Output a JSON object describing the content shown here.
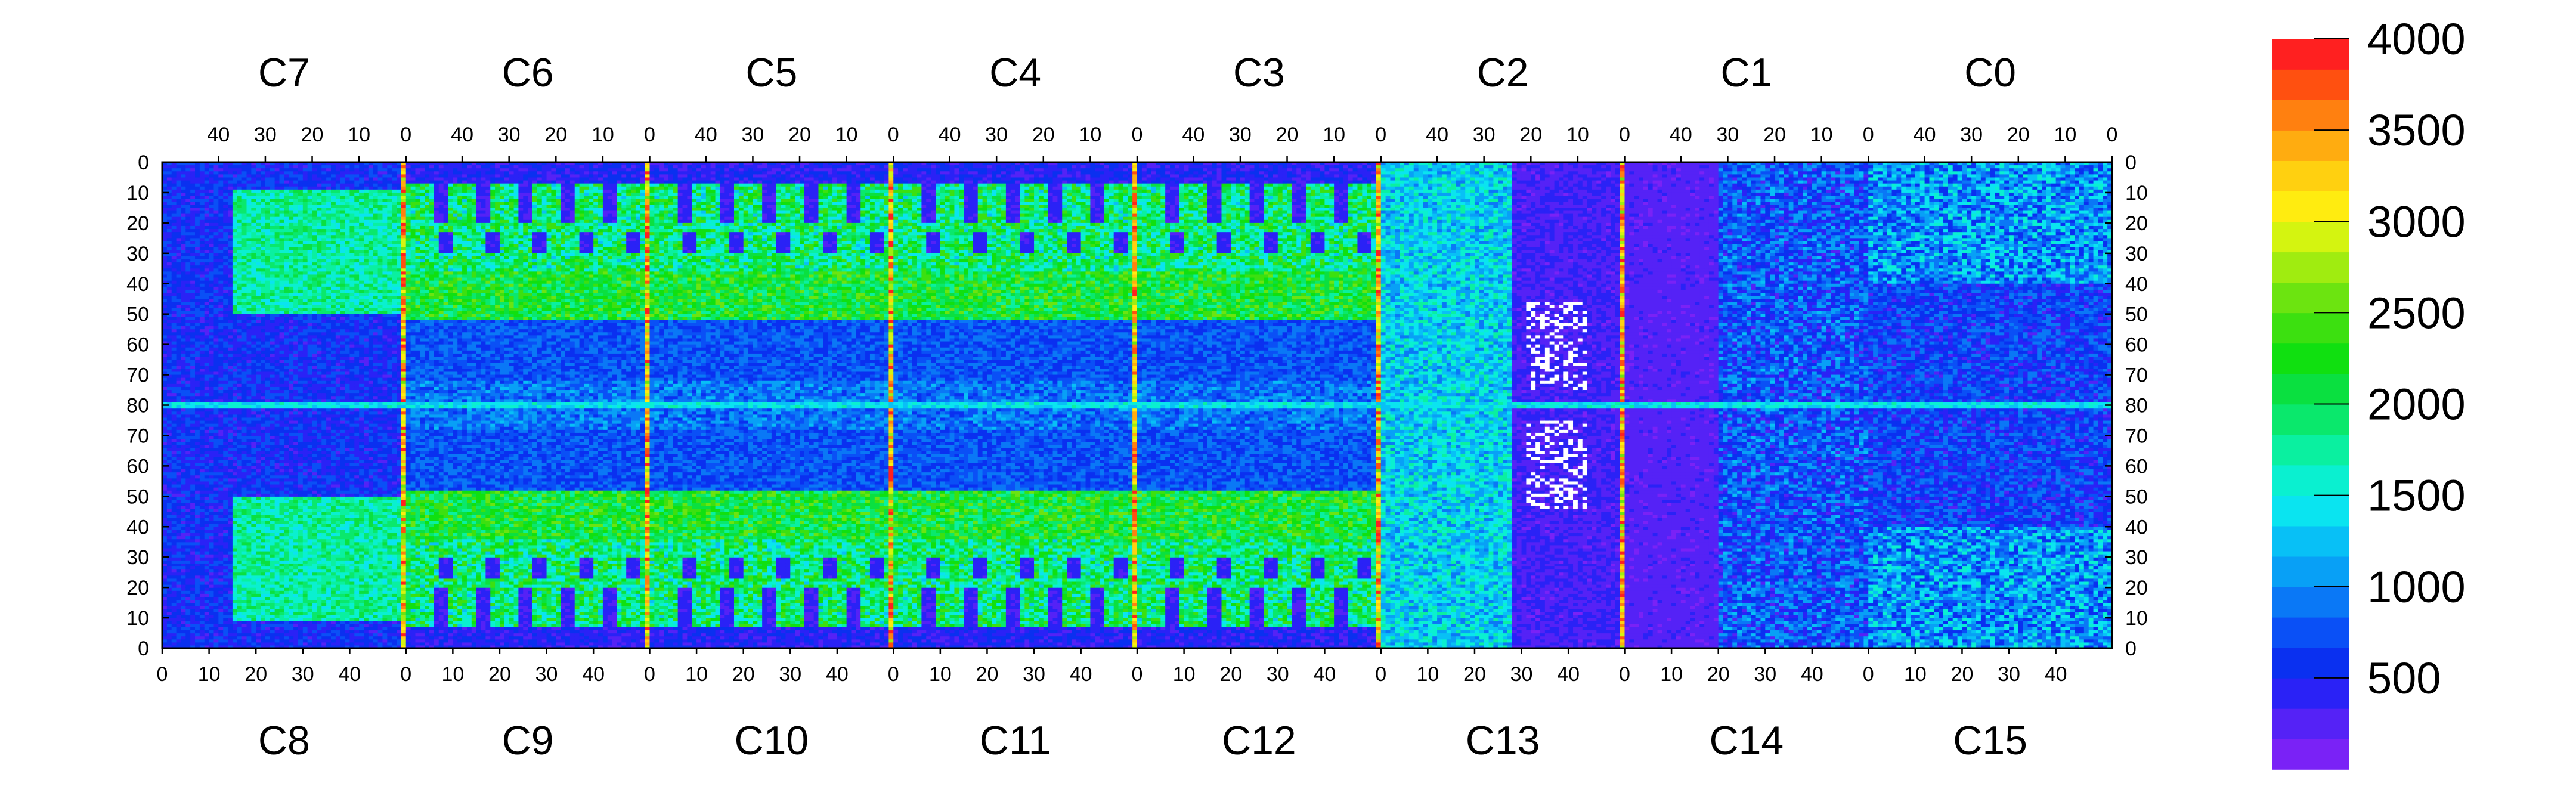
{
  "chart_data": {
    "type": "heatmap",
    "title": "",
    "xlabel": "",
    "ylabel": "",
    "chips_top": [
      "C7",
      "C6",
      "C5",
      "C4",
      "C3",
      "C2",
      "C1",
      "C0"
    ],
    "chips_bottom": [
      "C8",
      "C9",
      "C10",
      "C11",
      "C12",
      "C13",
      "C14",
      "C15"
    ],
    "top_x_ticks": [
      "40",
      "30",
      "20",
      "10",
      "0"
    ],
    "bottom_x_ticks": [
      "0",
      "10",
      "20",
      "30",
      "40"
    ],
    "y_ticks_upper": [
      "0",
      "10",
      "20",
      "30",
      "40",
      "50",
      "60",
      "70",
      "80"
    ],
    "y_ticks_lower": [
      "70",
      "60",
      "50",
      "40",
      "30",
      "20",
      "10",
      "0"
    ],
    "columns_per_chip": 52,
    "rows_per_half": 80,
    "colorbar": {
      "range": [
        0,
        4000
      ],
      "ticks": [
        "500",
        "1000",
        "1500",
        "2000",
        "2500",
        "3000",
        "3500",
        "4000"
      ],
      "colors": [
        "#7a22f6",
        "#5522f6",
        "#2a22f6",
        "#0a30f0",
        "#0a50f6",
        "#0a78f6",
        "#08a0f6",
        "#08c0f6",
        "#0ae4f0",
        "#0af0d0",
        "#0af0a0",
        "#0ae86c",
        "#0ae040",
        "#10e010",
        "#3ce010",
        "#6ce410",
        "#a0ec10",
        "#d4f410",
        "#ffec10",
        "#ffd010",
        "#ffac10",
        "#ff8010",
        "#ff5010",
        "#ff2020"
      ]
    },
    "legend_position": "right"
  }
}
